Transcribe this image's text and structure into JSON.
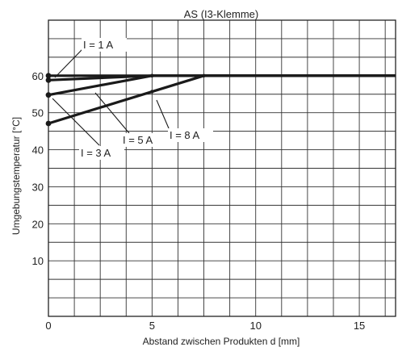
{
  "chart_data": {
    "type": "line",
    "title": "AS (I3-Klemme)",
    "xlabel": "Abstand zwischen Produkten d [mm]",
    "ylabel": "Umgebungstemperatur [°C]",
    "xlim": [
      0,
      16.75
    ],
    "ylim": [
      -5,
      75
    ],
    "x_ticks": [
      0,
      5,
      10,
      15
    ],
    "y_ticks": [
      10,
      20,
      30,
      40,
      50,
      60
    ],
    "x_grid_step": 1.25,
    "y_grid_step": 5,
    "grid": true,
    "series": [
      {
        "name": "I = 1 A",
        "x": [
          0,
          16.75
        ],
        "y": [
          60,
          60
        ]
      },
      {
        "name": "I = 3 A",
        "x": [
          0,
          5,
          16.75
        ],
        "y": [
          58.8,
          60,
          60
        ]
      },
      {
        "name": "I = 5 A",
        "x": [
          0,
          5,
          16.75
        ],
        "y": [
          54.8,
          60,
          60
        ]
      },
      {
        "name": "I = 8 A",
        "x": [
          0,
          5,
          7.5,
          16.75
        ],
        "y": [
          47.1,
          55.7,
          60,
          60
        ]
      }
    ],
    "annotations": [
      {
        "text": "I = 1 A",
        "series": "I = 1 A"
      },
      {
        "text": "I = 3 A",
        "series": "I = 3 A"
      },
      {
        "text": "I = 5 A",
        "series": "I = 5 A"
      },
      {
        "text": "I = 8 A",
        "series": "I = 8 A"
      }
    ]
  }
}
